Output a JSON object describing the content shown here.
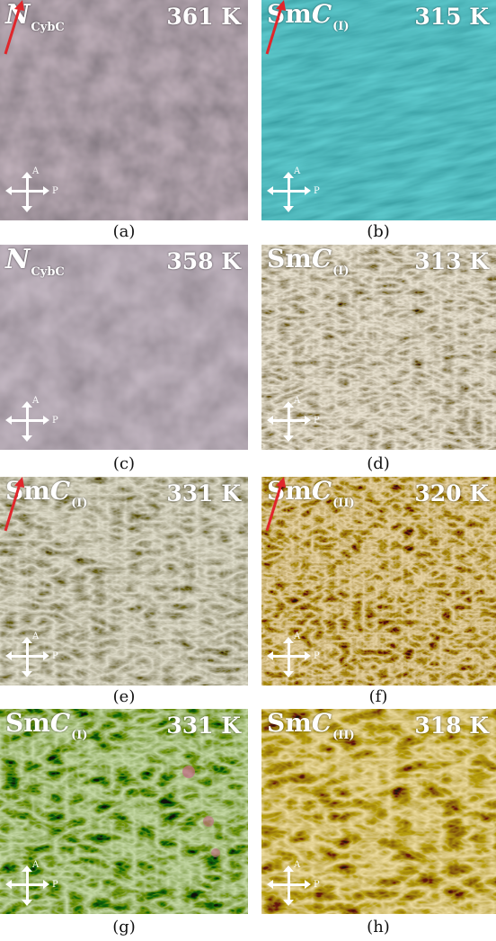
{
  "panels": [
    {
      "id": "a",
      "phase_symbol": "N",
      "phase_sub": "CybC",
      "temperature": "361 K",
      "caption": "(a)",
      "polarizer_a": "A",
      "polarizer_p": "P",
      "has_arrow": true,
      "tint": "#7a6f75"
    },
    {
      "id": "b",
      "phase_symbol": "C",
      "phase_prefix": "Sm",
      "phase_sub": "(I)",
      "temperature": "315 K",
      "caption": "(b)",
      "polarizer_a": "A",
      "polarizer_p": "P",
      "has_arrow": true,
      "tint": "#2aa3a6"
    },
    {
      "id": "c",
      "phase_symbol": "N",
      "phase_sub": "CybC",
      "temperature": "358 K",
      "caption": "(c)",
      "polarizer_a": "A",
      "polarizer_p": "P",
      "has_arrow": false,
      "tint": "#8a7d86"
    },
    {
      "id": "d",
      "phase_symbol": "C",
      "phase_prefix": "Sm",
      "phase_sub": "(I)",
      "temperature": "313 K",
      "caption": "(d)",
      "polarizer_a": "A",
      "polarizer_p": "P",
      "has_arrow": false,
      "tint": "#a69a82"
    },
    {
      "id": "e",
      "phase_symbol": "C",
      "phase_prefix": "Sm",
      "phase_sub": "(I)",
      "temperature": "331 K",
      "caption": "(e)",
      "polarizer_a": "A",
      "polarizer_p": "P",
      "has_arrow": true,
      "tint": "#8d8773"
    },
    {
      "id": "f",
      "phase_symbol": "C",
      "phase_prefix": "Sm",
      "phase_sub": "(II)",
      "temperature": "320 K",
      "caption": "(f)",
      "polarizer_a": "A",
      "polarizer_p": "P",
      "has_arrow": true,
      "tint": "#a08b5f"
    },
    {
      "id": "g",
      "phase_symbol": "C",
      "phase_prefix": "Sm",
      "phase_sub": "(I)",
      "temperature": "331 K",
      "caption": "(g)",
      "polarizer_a": "A",
      "polarizer_p": "P",
      "has_arrow": false,
      "tint": "#7a8a55"
    },
    {
      "id": "h",
      "phase_symbol": "C",
      "phase_prefix": "Sm",
      "phase_sub": "(II)",
      "temperature": "318 K",
      "caption": "(h)",
      "polarizer_a": "A",
      "polarizer_p": "P",
      "has_arrow": false,
      "tint": "#b79f55"
    }
  ]
}
